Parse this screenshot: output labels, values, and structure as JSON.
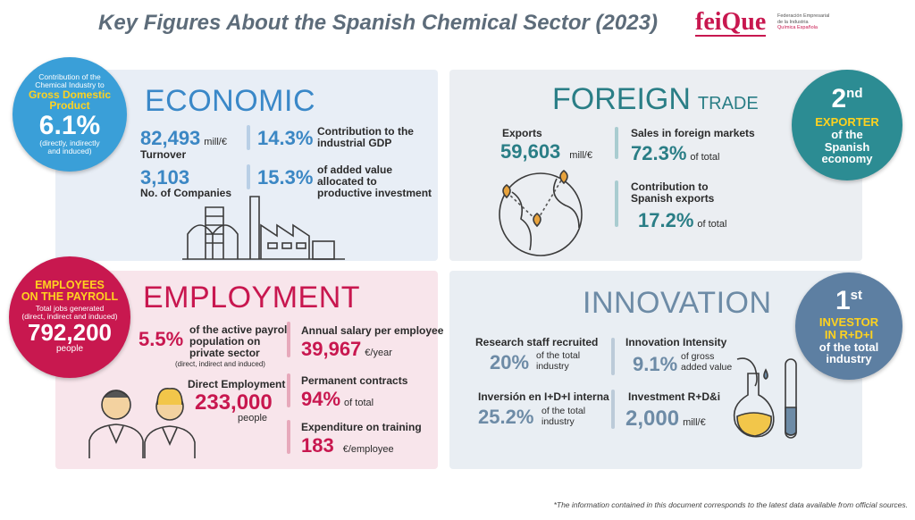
{
  "header": {
    "title": "Key Figures About the Spanish Chemical Sector (2023)",
    "logo": "feiQue",
    "logo_subtitle": [
      "Federación Empresarial",
      "de la Industria",
      "Química Española"
    ]
  },
  "economic": {
    "title": "ECONOMIC",
    "badge": {
      "intro": [
        "Contribution of the",
        "Chemical Industry to"
      ],
      "highlight": [
        "Gross Domestic",
        "Product"
      ],
      "value": "6.1%",
      "note": [
        "(directly, indirectly",
        "and induced)"
      ]
    },
    "turnover": {
      "value": "82,493",
      "unit": "mill/€",
      "label": "Turnover"
    },
    "companies": {
      "value": "3,103",
      "label": "No. of Companies"
    },
    "industrial_gdp": {
      "value": "14.3%",
      "label": "Contribution to the industrial GDP"
    },
    "added_value": {
      "value": "15.3%",
      "label": "of added value allocated to productive investment"
    }
  },
  "foreign_trade": {
    "title": "FOREIGN",
    "title_small": "TRADE",
    "badge": {
      "rank": "2",
      "rank_suffix": "nd",
      "highlight": "EXPORTER",
      "text": [
        "of the",
        "Spanish",
        "economy"
      ]
    },
    "exports": {
      "label": "Exports",
      "value": "59,603",
      "unit": "mill/€"
    },
    "sales": {
      "label": "Sales in foreign markets",
      "value": "72.3%",
      "unit": "of total"
    },
    "contribution": {
      "label": "Contribution to Spanish exports",
      "value": "17.2%",
      "unit": "of total"
    }
  },
  "employment": {
    "title": "EMPLOYMENT",
    "badge": {
      "highlight": [
        "EMPLOYEES",
        "ON THE PAYROLL"
      ],
      "intro": [
        "Total jobs generated",
        "(direct, indirect and induced)"
      ],
      "value": "792,200",
      "unit": "people"
    },
    "payroll": {
      "value": "5.5%",
      "label": "of the active payroll population on private sector",
      "note": "(direct, indirect and induced)"
    },
    "direct": {
      "label": "Direct Employment",
      "value": "233,000",
      "unit": "people"
    },
    "salary": {
      "label": "Annual salary per employee",
      "value": "39,967",
      "unit": "€/year"
    },
    "permanent": {
      "label": "Permanent contracts",
      "value": "94%",
      "unit": "of total"
    },
    "training": {
      "label": "Expenditure on training",
      "value": "183",
      "unit": "€/employee"
    }
  },
  "innovation": {
    "title": "INNOVATION",
    "badge": {
      "rank": "1",
      "rank_suffix": "st",
      "highlight": [
        "INVESTOR",
        "IN R+D+I"
      ],
      "text": [
        "of the total",
        "industry"
      ]
    },
    "research": {
      "label": "Research staff recruited",
      "value": "20%",
      "unit": "of the total industry"
    },
    "intensity": {
      "label": "Innovation Intensity",
      "value": "9.1%",
      "unit": "of gross added value"
    },
    "internal": {
      "label": "Inversión en I+D+I interna",
      "value": "25.2%",
      "unit": "of the total industry"
    },
    "investment": {
      "label": "Investment R+D&i",
      "value": "2,000",
      "unit": "mill/€"
    }
  },
  "footer": {
    "note": "*The information contained in this document corresponds to the latest data available from official sources."
  }
}
